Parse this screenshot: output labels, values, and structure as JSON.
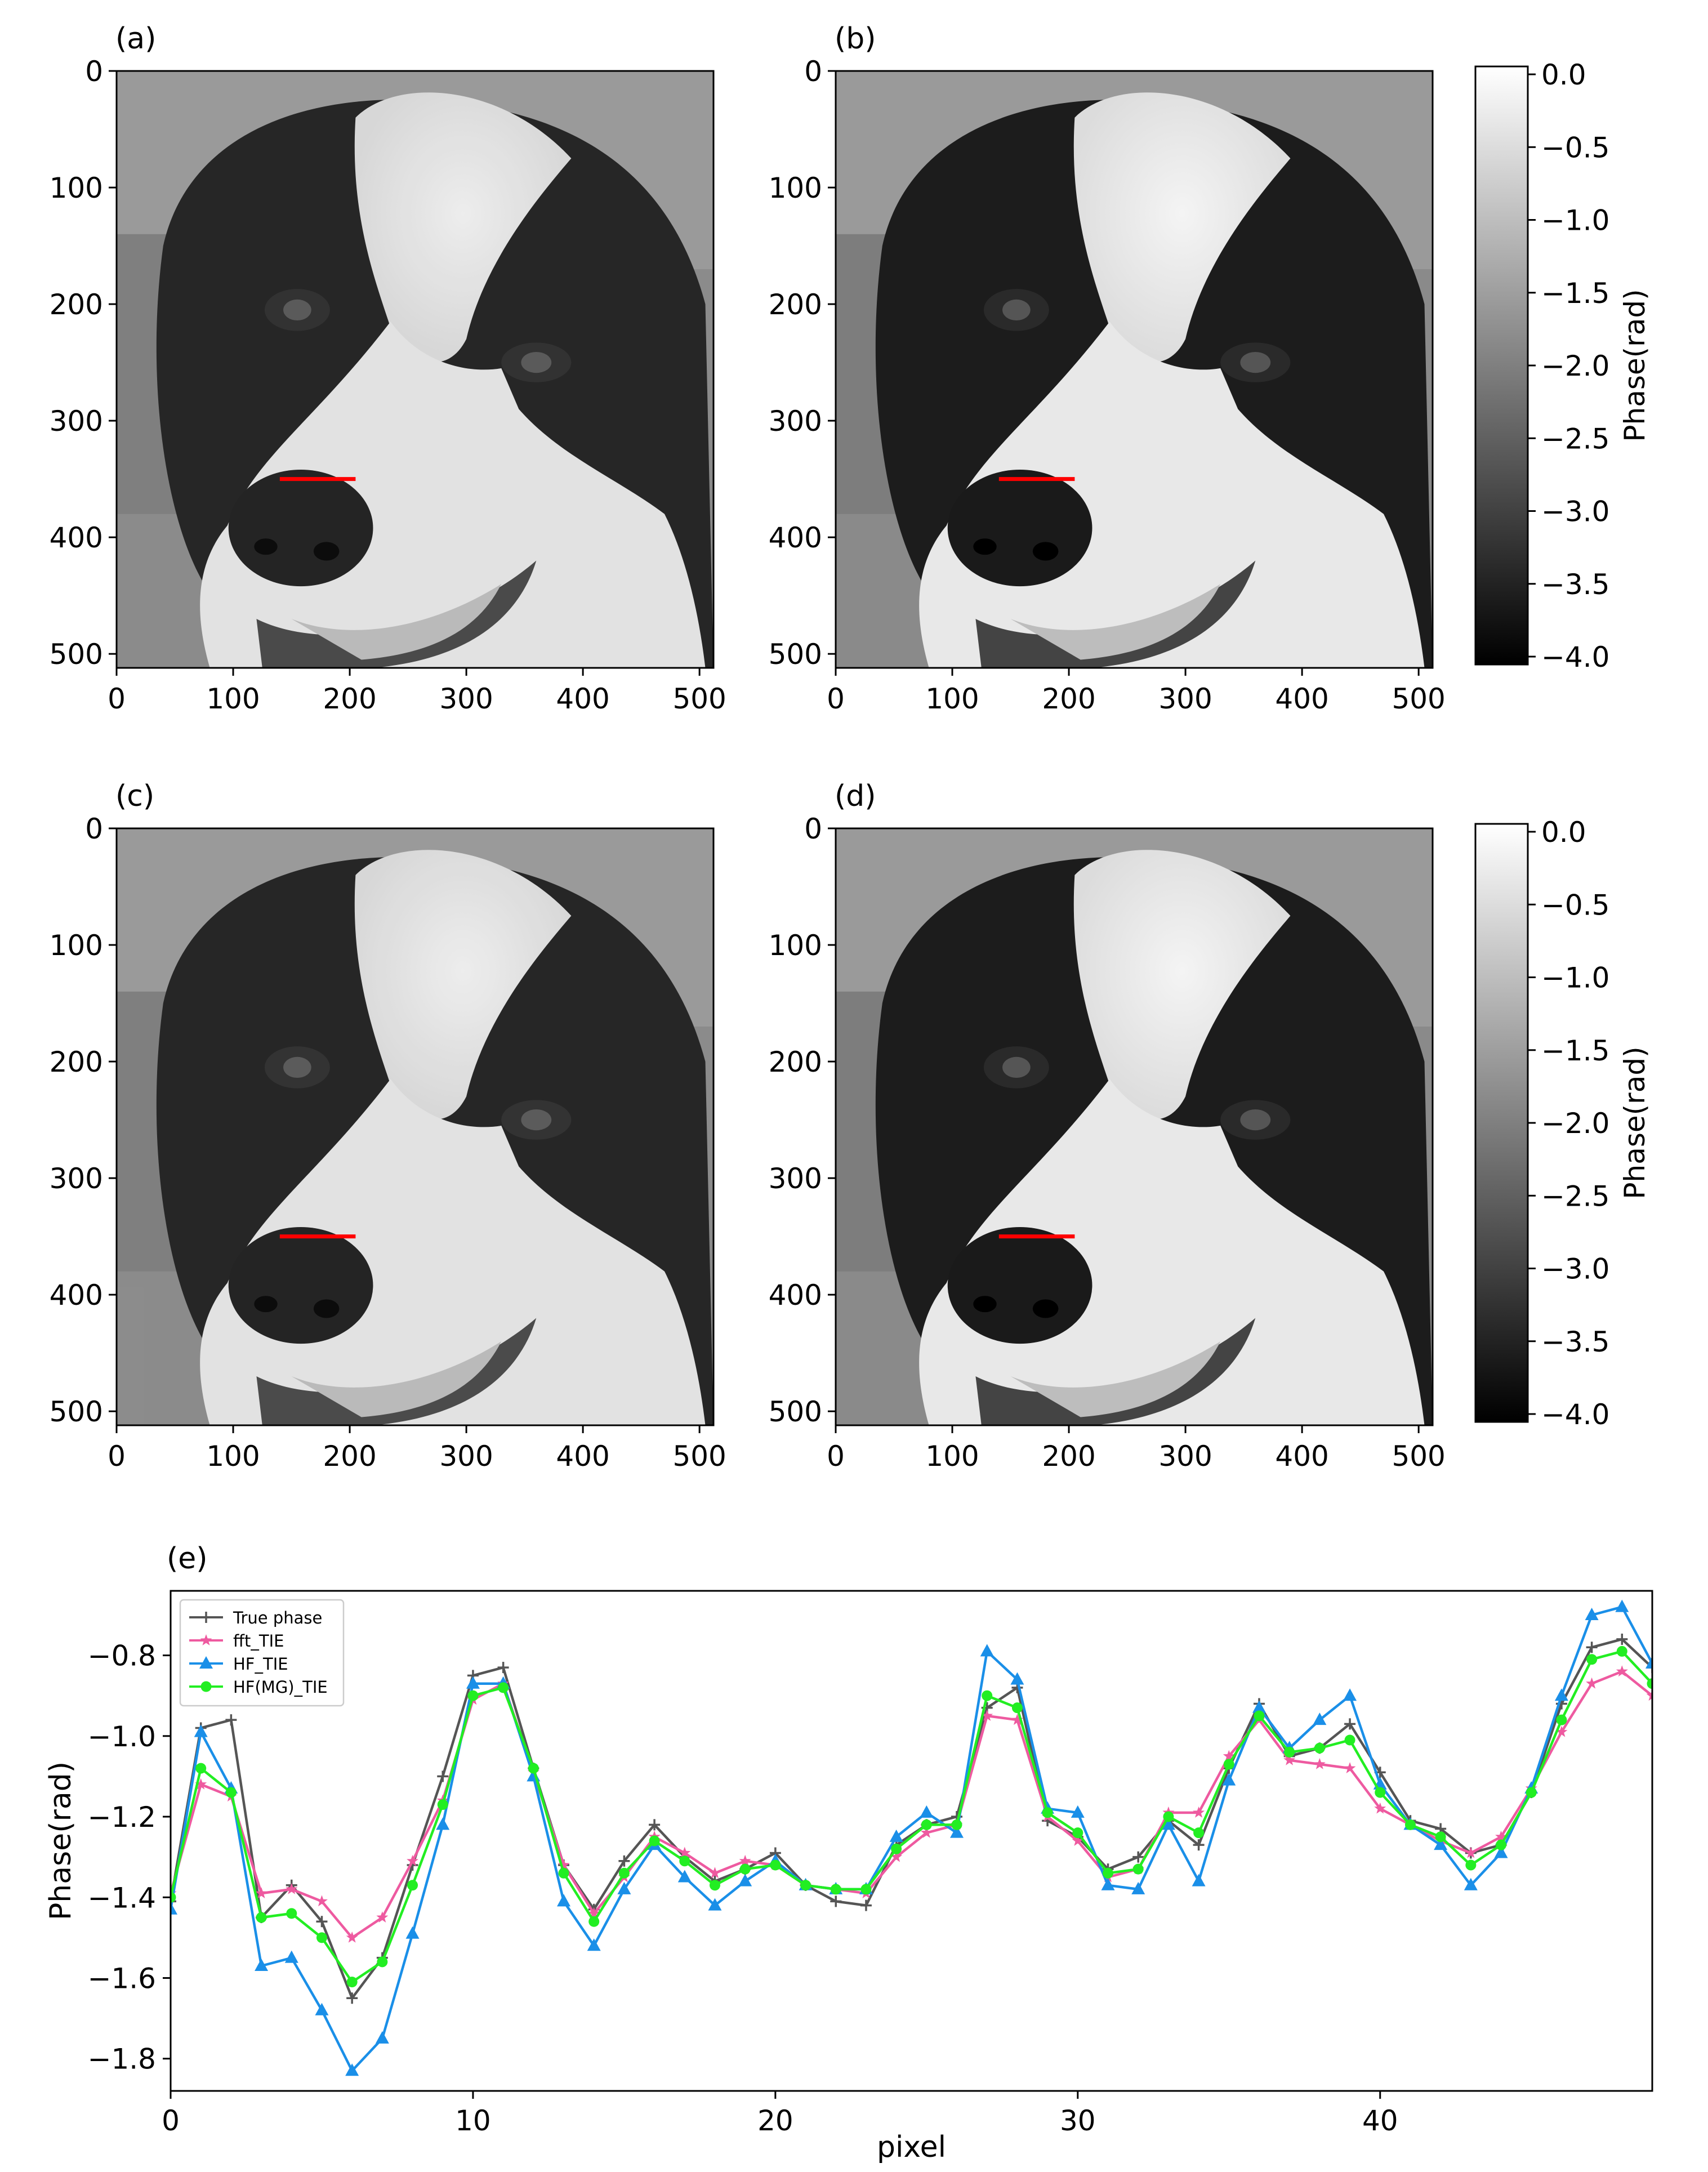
{
  "panels": [
    {
      "label": "(a)",
      "source": "dog-photo-a"
    },
    {
      "label": "(b)",
      "source": "dog-photo-b"
    },
    {
      "label": "(c)",
      "source": "dog-photo-c"
    },
    {
      "label": "(d)",
      "source": "dog-photo-d"
    }
  ],
  "image_axes": {
    "x_ticks": [
      "0",
      "100",
      "200",
      "300",
      "400",
      "500"
    ],
    "y_ticks": [
      "0",
      "100",
      "200",
      "300",
      "400",
      "500"
    ]
  },
  "colorbar": {
    "label": "Phase(rad)",
    "ticks": [
      "0.0",
      "−0.5",
      "−1.0",
      "−1.5",
      "−2.0",
      "−2.5",
      "−3.0",
      "−3.5",
      "−4.0"
    ],
    "colormap": [
      "#ffffff",
      "#000000"
    ]
  },
  "line_color": "#ff0000",
  "chart_data": {
    "type": "line",
    "panel_label": "(e)",
    "title": "",
    "xlabel": "pixel",
    "ylabel": "Phase(rad)",
    "xlim": [
      0,
      49
    ],
    "ylim": [
      -1.88,
      -0.64
    ],
    "x_ticks": [
      0,
      10,
      20,
      30,
      40
    ],
    "y_ticks": [
      -0.8,
      -1.0,
      -1.2,
      -1.4,
      -1.6,
      -1.8
    ],
    "y_tick_labels": [
      "−0.8",
      "−1.0",
      "−1.2",
      "−1.4",
      "−1.6",
      "−1.8"
    ],
    "legend_position": "top-left",
    "x": [
      0,
      1,
      2,
      3,
      4,
      5,
      6,
      7,
      8,
      9,
      10,
      11,
      12,
      13,
      14,
      15,
      16,
      17,
      18,
      19,
      20,
      21,
      22,
      23,
      24,
      25,
      26,
      27,
      28,
      29,
      30,
      31,
      32,
      33,
      34,
      35,
      36,
      37,
      38,
      39,
      40,
      41,
      42,
      43,
      44,
      45,
      46,
      47,
      48,
      49
    ],
    "series": [
      {
        "name": "True phase",
        "color": "#555555",
        "marker": "plus",
        "values": [
          -1.41,
          -0.98,
          -0.96,
          -1.45,
          -1.37,
          -1.46,
          -1.65,
          -1.55,
          -1.32,
          -1.1,
          -0.85,
          -0.83,
          -1.08,
          -1.32,
          -1.43,
          -1.31,
          -1.22,
          -1.3,
          -1.36,
          -1.33,
          -1.29,
          -1.37,
          -1.41,
          -1.42,
          -1.27,
          -1.22,
          -1.2,
          -0.93,
          -0.88,
          -1.21,
          -1.25,
          -1.33,
          -1.3,
          -1.21,
          -1.27,
          -1.08,
          -0.92,
          -1.05,
          -1.03,
          -0.97,
          -1.09,
          -1.21,
          -1.23,
          -1.29,
          -1.27,
          -1.14,
          -0.92,
          -0.78,
          -0.76,
          -0.83
        ]
      },
      {
        "name": "fft_TIE",
        "color": "#ee5aa0",
        "marker": "star",
        "values": [
          -1.39,
          -1.12,
          -1.15,
          -1.39,
          -1.38,
          -1.41,
          -1.5,
          -1.45,
          -1.31,
          -1.16,
          -0.91,
          -0.87,
          -1.09,
          -1.32,
          -1.44,
          -1.35,
          -1.25,
          -1.29,
          -1.34,
          -1.31,
          -1.32,
          -1.37,
          -1.38,
          -1.39,
          -1.3,
          -1.24,
          -1.22,
          -0.95,
          -0.96,
          -1.2,
          -1.26,
          -1.35,
          -1.33,
          -1.19,
          -1.19,
          -1.05,
          -0.96,
          -1.06,
          -1.07,
          -1.08,
          -1.18,
          -1.22,
          -1.26,
          -1.29,
          -1.25,
          -1.13,
          -0.99,
          -0.87,
          -0.84,
          -0.9
        ]
      },
      {
        "name": "HF_TIE",
        "color": "#1a8fe8",
        "marker": "triangle",
        "values": [
          -1.43,
          -0.99,
          -1.13,
          -1.57,
          -1.55,
          -1.68,
          -1.83,
          -1.75,
          -1.49,
          -1.22,
          -0.87,
          -0.87,
          -1.1,
          -1.41,
          -1.52,
          -1.38,
          -1.27,
          -1.35,
          -1.42,
          -1.36,
          -1.31,
          -1.37,
          -1.38,
          -1.38,
          -1.25,
          -1.19,
          -1.24,
          -0.79,
          -0.86,
          -1.18,
          -1.19,
          -1.37,
          -1.38,
          -1.22,
          -1.36,
          -1.11,
          -0.93,
          -1.03,
          -0.96,
          -0.9,
          -1.12,
          -1.22,
          -1.27,
          -1.37,
          -1.29,
          -1.13,
          -0.9,
          -0.7,
          -0.68,
          -0.82
        ]
      },
      {
        "name": "HF(MG)_TIE",
        "color": "#22ee22",
        "marker": "circle",
        "values": [
          -1.4,
          -1.08,
          -1.14,
          -1.45,
          -1.44,
          -1.5,
          -1.61,
          -1.56,
          -1.37,
          -1.17,
          -0.9,
          -0.88,
          -1.08,
          -1.34,
          -1.46,
          -1.34,
          -1.26,
          -1.31,
          -1.37,
          -1.33,
          -1.32,
          -1.37,
          -1.38,
          -1.38,
          -1.28,
          -1.22,
          -1.22,
          -0.9,
          -0.93,
          -1.19,
          -1.24,
          -1.34,
          -1.33,
          -1.2,
          -1.24,
          -1.07,
          -0.95,
          -1.04,
          -1.03,
          -1.01,
          -1.14,
          -1.22,
          -1.25,
          -1.32,
          -1.27,
          -1.14,
          -0.96,
          -0.81,
          -0.79,
          -0.87
        ]
      }
    ]
  }
}
